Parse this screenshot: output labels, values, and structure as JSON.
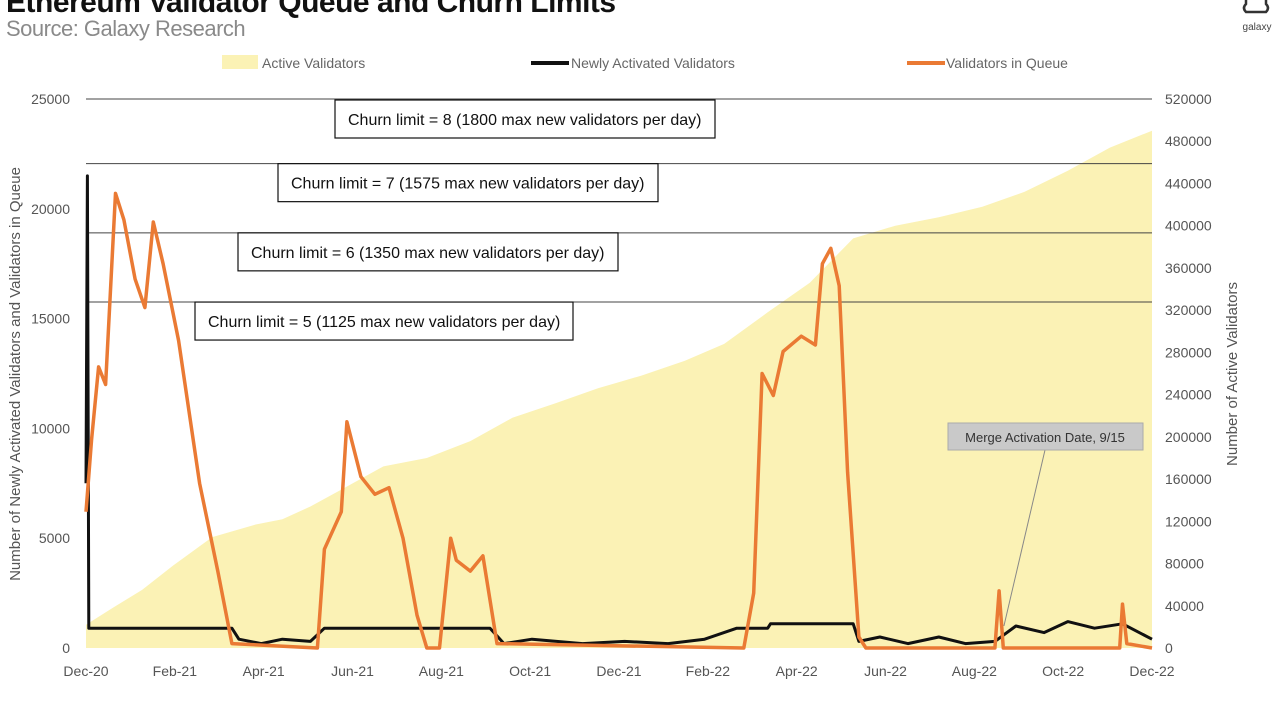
{
  "header": {
    "title": "Ethereum Validator Queue and Churn Limits",
    "source": "Source: Galaxy Research",
    "logo_text": "galaxy"
  },
  "colors": {
    "active": "#fbf2b5",
    "newly": "#111111",
    "queue": "#ea7a34",
    "gridline": "#444444"
  },
  "chart_data": {
    "type": "line",
    "title": "Ethereum Validator Queue and Churn Limits",
    "x_tick_labels": [
      "Dec-20",
      "Feb-21",
      "Apr-21",
      "Jun-21",
      "Aug-21",
      "Oct-21",
      "Dec-21",
      "Feb-22",
      "Apr-22",
      "Jun-22",
      "Aug-22",
      "Oct-22",
      "Dec-22"
    ],
    "x_range": [
      "2020-12-01",
      "2022-12-31"
    ],
    "ylabel_left": "Number of Newly Activated Validators and Validators in Queue",
    "ylabel_right": "Number of Active Validators",
    "ylim_left": [
      0,
      25000
    ],
    "ylim_right": [
      0,
      520000
    ],
    "y_ticks_left": [
      0,
      5000,
      10000,
      15000,
      20000,
      25000
    ],
    "y_ticks_right": [
      0,
      40000,
      80000,
      120000,
      160000,
      200000,
      240000,
      280000,
      320000,
      360000,
      400000,
      440000,
      480000,
      520000
    ],
    "legend": [
      "Active Validators",
      "Newly Activated Validators",
      "Validators in Queue"
    ],
    "legend_position": "top",
    "churn_limits": [
      {
        "label": "Churn limit = 8 (1800 max new validators per day)",
        "active_validators": 520000
      },
      {
        "label": "Churn limit = 7 (1575 max new validators per day)",
        "active_validators": 458752
      },
      {
        "label": "Churn limit = 6 (1350 max new validators per day)",
        "active_validators": 393216
      },
      {
        "label": "Churn limit = 5 (1125 max new validators per day)",
        "active_validators": 327680
      }
    ],
    "annotation": {
      "label": "Merge Activation Date, 9/15",
      "date": "2022-09-15"
    },
    "series": [
      {
        "name": "Active Validators",
        "axis": "right",
        "points": [
          [
            "2020-12-01",
            22000
          ],
          [
            "2020-12-20",
            38000
          ],
          [
            "2021-01-10",
            55000
          ],
          [
            "2021-02-01",
            78000
          ],
          [
            "2021-03-01",
            105000
          ],
          [
            "2021-04-01",
            117000
          ],
          [
            "2021-04-20",
            122000
          ],
          [
            "2021-05-10",
            134000
          ],
          [
            "2021-06-01",
            150000
          ],
          [
            "2021-07-01",
            172000
          ],
          [
            "2021-08-01",
            180000
          ],
          [
            "2021-09-01",
            196000
          ],
          [
            "2021-10-01",
            218000
          ],
          [
            "2021-11-01",
            232000
          ],
          [
            "2021-12-01",
            246000
          ],
          [
            "2022-01-01",
            258000
          ],
          [
            "2022-02-01",
            272000
          ],
          [
            "2022-03-01",
            288000
          ],
          [
            "2022-04-01",
            318000
          ],
          [
            "2022-05-01",
            346000
          ],
          [
            "2022-06-01",
            388000
          ],
          [
            "2022-07-01",
            400000
          ],
          [
            "2022-08-01",
            408000
          ],
          [
            "2022-09-01",
            418000
          ],
          [
            "2022-10-01",
            432000
          ],
          [
            "2022-11-01",
            452000
          ],
          [
            "2022-12-01",
            474000
          ],
          [
            "2022-12-31",
            490000
          ]
        ]
      },
      {
        "name": "Newly Activated Validators",
        "axis": "left",
        "points": [
          [
            "2020-12-01",
            7500
          ],
          [
            "2020-12-02",
            21500
          ],
          [
            "2020-12-03",
            900
          ],
          [
            "2021-01-15",
            900
          ],
          [
            "2021-03-15",
            900
          ],
          [
            "2021-03-20",
            400
          ],
          [
            "2021-04-05",
            200
          ],
          [
            "2021-04-20",
            400
          ],
          [
            "2021-05-10",
            300
          ],
          [
            "2021-05-20",
            900
          ],
          [
            "2021-07-10",
            900
          ],
          [
            "2021-08-10",
            900
          ],
          [
            "2021-09-01",
            900
          ],
          [
            "2021-09-15",
            900
          ],
          [
            "2021-09-25",
            200
          ],
          [
            "2021-10-15",
            400
          ],
          [
            "2021-11-20",
            200
          ],
          [
            "2021-12-20",
            300
          ],
          [
            "2022-01-20",
            200
          ],
          [
            "2022-02-15",
            400
          ],
          [
            "2022-03-10",
            900
          ],
          [
            "2022-04-01",
            900
          ],
          [
            "2022-04-03",
            1100
          ],
          [
            "2022-06-01",
            1100
          ],
          [
            "2022-06-05",
            300
          ],
          [
            "2022-06-20",
            500
          ],
          [
            "2022-07-10",
            200
          ],
          [
            "2022-08-01",
            500
          ],
          [
            "2022-08-20",
            200
          ],
          [
            "2022-09-10",
            300
          ],
          [
            "2022-09-25",
            1000
          ],
          [
            "2022-10-15",
            700
          ],
          [
            "2022-11-01",
            1200
          ],
          [
            "2022-11-20",
            900
          ],
          [
            "2022-12-10",
            1100
          ],
          [
            "2022-12-31",
            400
          ]
        ]
      },
      {
        "name": "Validators in Queue",
        "axis": "left",
        "points": [
          [
            "2020-12-01",
            6200
          ],
          [
            "2020-12-05",
            9500
          ],
          [
            "2020-12-10",
            12800
          ],
          [
            "2020-12-15",
            12000
          ],
          [
            "2020-12-22",
            20700
          ],
          [
            "2020-12-28",
            19500
          ],
          [
            "2021-01-05",
            16800
          ],
          [
            "2021-01-12",
            15500
          ],
          [
            "2021-01-18",
            19400
          ],
          [
            "2021-01-25",
            17500
          ],
          [
            "2021-02-05",
            14000
          ],
          [
            "2021-02-20",
            7500
          ],
          [
            "2021-03-05",
            3500
          ],
          [
            "2021-03-15",
            200
          ],
          [
            "2021-05-15",
            0
          ],
          [
            "2021-05-20",
            4500
          ],
          [
            "2021-06-01",
            6200
          ],
          [
            "2021-06-05",
            10300
          ],
          [
            "2021-06-15",
            7800
          ],
          [
            "2021-06-25",
            7000
          ],
          [
            "2021-07-05",
            7300
          ],
          [
            "2021-07-15",
            5000
          ],
          [
            "2021-07-25",
            1500
          ],
          [
            "2021-08-01",
            0
          ],
          [
            "2021-08-10",
            0
          ],
          [
            "2021-08-18",
            5000
          ],
          [
            "2021-08-22",
            4000
          ],
          [
            "2021-09-01",
            3500
          ],
          [
            "2021-09-10",
            4200
          ],
          [
            "2021-09-20",
            200
          ],
          [
            "2022-03-15",
            0
          ],
          [
            "2022-03-22",
            2500
          ],
          [
            "2022-03-28",
            12500
          ],
          [
            "2022-04-05",
            11500
          ],
          [
            "2022-04-12",
            13500
          ],
          [
            "2022-04-25",
            14200
          ],
          [
            "2022-05-05",
            13800
          ],
          [
            "2022-05-10",
            17500
          ],
          [
            "2022-05-16",
            18200
          ],
          [
            "2022-05-22",
            16500
          ],
          [
            "2022-05-28",
            8000
          ],
          [
            "2022-06-05",
            500
          ],
          [
            "2022-06-10",
            0
          ],
          [
            "2022-09-10",
            0
          ],
          [
            "2022-09-13",
            2600
          ],
          [
            "2022-09-16",
            0
          ],
          [
            "2022-12-08",
            0
          ],
          [
            "2022-12-10",
            2000
          ],
          [
            "2022-12-13",
            200
          ],
          [
            "2022-12-31",
            0
          ]
        ]
      }
    ]
  }
}
